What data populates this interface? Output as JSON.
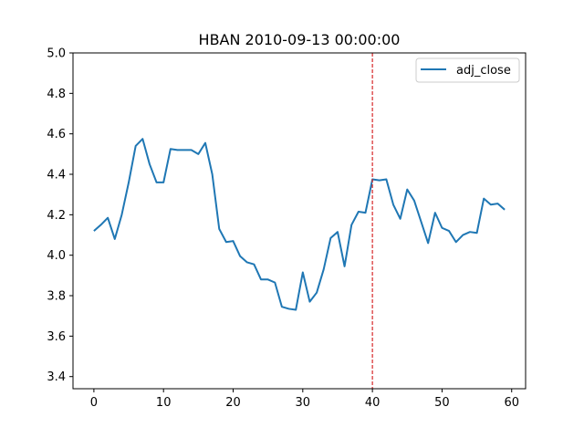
{
  "chart_data": {
    "type": "line",
    "title": "HBAN 2010-09-13 00:00:00",
    "xlabel": "",
    "ylabel": "",
    "xlim": [
      -3,
      62
    ],
    "ylim": [
      3.34,
      5.0
    ],
    "xticks": [
      0,
      10,
      20,
      30,
      40,
      50,
      60
    ],
    "yticks": [
      3.4,
      3.6,
      3.8,
      4.0,
      4.2,
      4.4,
      4.6,
      4.8,
      5.0
    ],
    "xtick_labels": [
      "0",
      "10",
      "20",
      "30",
      "40",
      "50",
      "60"
    ],
    "ytick_labels": [
      "3.4",
      "3.6",
      "3.8",
      "4.0",
      "4.2",
      "4.4",
      "4.6",
      "4.8",
      "5.0"
    ],
    "grid": false,
    "legend_position": "top-right",
    "vline": {
      "x": 40,
      "color": "#d62728",
      "style": "dashed"
    },
    "series": [
      {
        "name": "adj_close",
        "color": "#1f77b4",
        "x": [
          0,
          1,
          2,
          3,
          4,
          5,
          6,
          7,
          8,
          9,
          10,
          11,
          12,
          13,
          14,
          15,
          16,
          17,
          18,
          19,
          20,
          21,
          22,
          23,
          24,
          25,
          26,
          27,
          28,
          29,
          30,
          31,
          32,
          33,
          34,
          35,
          36,
          37,
          38,
          39,
          40,
          41,
          42,
          43,
          44,
          45,
          46,
          47,
          48,
          49,
          50,
          51,
          52,
          53,
          54,
          55,
          56,
          57,
          58,
          59
        ],
        "values": [
          4.12,
          4.15,
          4.185,
          4.08,
          4.2,
          4.36,
          4.54,
          4.575,
          4.45,
          4.36,
          4.36,
          4.525,
          4.52,
          4.52,
          4.52,
          4.5,
          4.555,
          4.4,
          4.13,
          4.065,
          4.07,
          3.995,
          3.965,
          3.955,
          3.88,
          3.88,
          3.865,
          3.745,
          3.735,
          3.73,
          3.915,
          3.77,
          3.815,
          3.93,
          4.085,
          4.115,
          3.945,
          4.15,
          4.215,
          4.21,
          4.375,
          4.37,
          4.375,
          4.25,
          4.18,
          4.325,
          4.27,
          4.165,
          4.06,
          4.21,
          4.135,
          4.12,
          4.065,
          4.1,
          4.115,
          4.11,
          4.28,
          4.25,
          4.255,
          4.225
        ]
      }
    ]
  }
}
